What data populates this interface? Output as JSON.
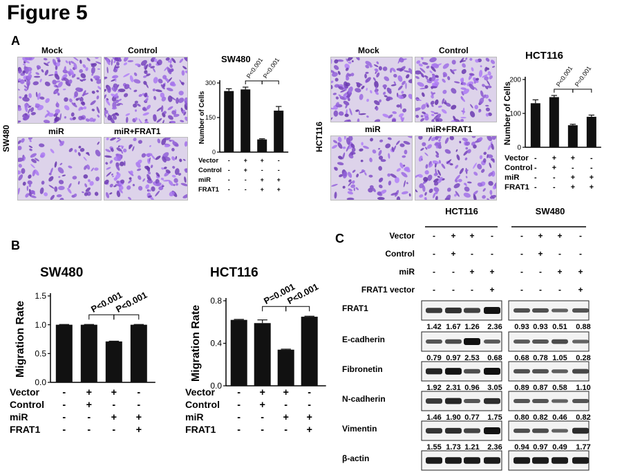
{
  "figure_title": "Figure 5",
  "panel_a": {
    "letter": "A",
    "sw480": {
      "side_label": "SW480",
      "image_labels": [
        "Mock",
        "Control",
        "miR",
        "miR+FRAT1"
      ],
      "densities": [
        0.85,
        0.8,
        0.3,
        0.6
      ]
    },
    "hct116": {
      "side_label": "HCT116",
      "image_labels": [
        "Mock",
        "Control",
        "miR",
        "miR+FRAT1"
      ],
      "densities": [
        0.6,
        0.65,
        0.35,
        0.55
      ]
    }
  },
  "panel_b": {
    "letter": "B"
  },
  "panel_c": {
    "letter": "C",
    "group_labels": [
      "HCT116",
      "SW480"
    ],
    "treatments": [
      {
        "name": "Vector",
        "marks": [
          "-",
          "+",
          "+",
          "-",
          "-",
          "+",
          "+",
          "-"
        ]
      },
      {
        "name": "Control",
        "marks": [
          "-",
          "+",
          "-",
          "-",
          "-",
          "+",
          "-",
          "-"
        ]
      },
      {
        "name": "miR",
        "marks": [
          "-",
          "-",
          "+",
          "+",
          "-",
          "-",
          "+",
          "+"
        ]
      },
      {
        "name": "FRAT1 vector",
        "marks": [
          "-",
          "-",
          "-",
          "+",
          "-",
          "-",
          "-",
          "+"
        ]
      }
    ],
    "blots": [
      {
        "name": "FRAT1",
        "values": [
          "1.42",
          "1.67",
          "1.26",
          "2.36",
          "0.93",
          "0.93",
          "0.51",
          "0.88"
        ]
      },
      {
        "name": "E-cadherin",
        "values": [
          "0.79",
          "0.97",
          "2.53",
          "0.68",
          "0.68",
          "0.78",
          "1.05",
          "0.28"
        ]
      },
      {
        "name": "Fibronetin",
        "values": [
          "1.92",
          "2.31",
          "0.96",
          "3.05",
          "0.89",
          "0.87",
          "0.58",
          "1.10"
        ]
      },
      {
        "name": "N-cadherin",
        "values": [
          "1.46",
          "1.90",
          "0.77",
          "1.75",
          "0.80",
          "0.82",
          "0.46",
          "0.82"
        ]
      },
      {
        "name": "Vimentin",
        "values": [
          "1.55",
          "1.73",
          "1.21",
          "2.36",
          "0.94",
          "0.97",
          "0.49",
          "1.77"
        ]
      },
      {
        "name": "β-actin",
        "values": []
      }
    ]
  },
  "chart_data": [
    {
      "type": "bar",
      "panel": "A",
      "title": "SW480",
      "ylabel": "Number of Cells",
      "ylim": [
        0,
        300
      ],
      "yticks": [
        "0",
        "150",
        "300"
      ],
      "values": [
        265,
        272,
        55,
        180
      ],
      "errors": [
        10,
        10,
        3,
        18
      ],
      "significance": [
        "P<0.001",
        "P<0.001"
      ],
      "conditions": [
        {
          "name": "Vector",
          "marks": [
            "-",
            "+",
            "+",
            "-"
          ]
        },
        {
          "name": "Control",
          "marks": [
            "-",
            "+",
            "-",
            "-"
          ]
        },
        {
          "name": "miR",
          "marks": [
            "-",
            "-",
            "+",
            "+"
          ]
        },
        {
          "name": "FRAT1",
          "marks": [
            "-",
            "-",
            "+",
            "+"
          ]
        }
      ]
    },
    {
      "type": "bar",
      "panel": "A",
      "title": "HCT116",
      "ylabel": "Number of Cells",
      "ylim": [
        0,
        200
      ],
      "yticks": [
        "0",
        "100",
        "200"
      ],
      "values": [
        130,
        148,
        65,
        90
      ],
      "errors": [
        10,
        5,
        3,
        5
      ],
      "significance": [
        "P<0.001",
        "P=0.001"
      ],
      "conditions": [
        {
          "name": "Vector",
          "marks": [
            "-",
            "+",
            "+",
            "-"
          ]
        },
        {
          "name": "Control",
          "marks": [
            "-",
            "+",
            "-",
            "-"
          ]
        },
        {
          "name": "miR",
          "marks": [
            "-",
            "-",
            "+",
            "+"
          ]
        },
        {
          "name": "FRAT1",
          "marks": [
            "-",
            "-",
            "+",
            "+"
          ]
        }
      ]
    },
    {
      "type": "bar",
      "panel": "B",
      "title": "SW480",
      "ylabel": "Migration Rate",
      "ylim": [
        0,
        1.5
      ],
      "yticks": [
        "0.0",
        "0.5",
        "1.0",
        "1.5"
      ],
      "values": [
        1.0,
        1.0,
        0.71,
        1.0
      ],
      "errors": [
        0.005,
        0.005,
        0.005,
        0.005
      ],
      "significance": [
        "P<0.001",
        "P<0.001"
      ],
      "conditions": [
        {
          "name": "Vector",
          "marks": [
            "-",
            "+",
            "+",
            "-"
          ]
        },
        {
          "name": "Control",
          "marks": [
            "-",
            "+",
            "-",
            "-"
          ]
        },
        {
          "name": "miR",
          "marks": [
            "-",
            "-",
            "+",
            "+"
          ]
        },
        {
          "name": "FRAT1",
          "marks": [
            "-",
            "-",
            "-",
            "+"
          ]
        }
      ]
    },
    {
      "type": "bar",
      "panel": "B",
      "title": "HCT116",
      "ylabel": "Migration Rate",
      "ylim": [
        0,
        0.8
      ],
      "yticks": [
        "0.0",
        "0.4",
        "0.8"
      ],
      "values": [
        0.62,
        0.59,
        0.34,
        0.65
      ],
      "errors": [
        0.005,
        0.03,
        0.005,
        0.005
      ],
      "significance": [
        "P=0.001",
        "P<0.001"
      ],
      "conditions": [
        {
          "name": "Vector",
          "marks": [
            "-",
            "+",
            "+",
            "-"
          ]
        },
        {
          "name": "Control",
          "marks": [
            "-",
            "+",
            "-",
            "-"
          ]
        },
        {
          "name": "miR",
          "marks": [
            "-",
            "-",
            "+",
            "+"
          ]
        },
        {
          "name": "FRAT1",
          "marks": [
            "-",
            "-",
            "-",
            "+"
          ]
        }
      ]
    }
  ]
}
